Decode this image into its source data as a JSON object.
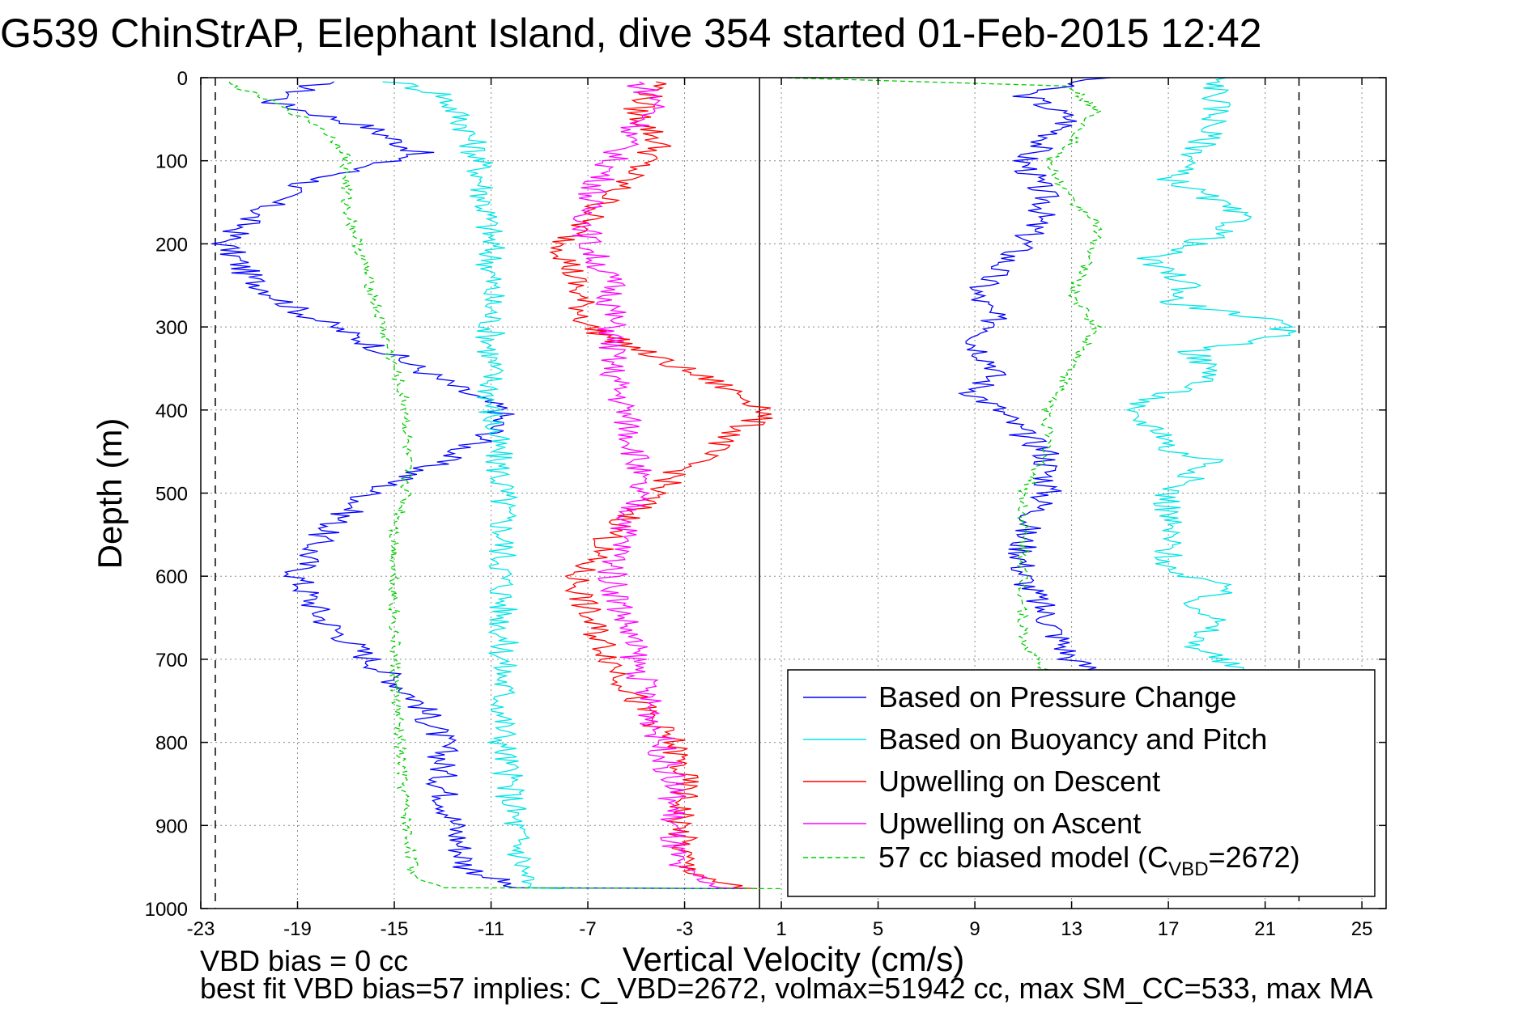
{
  "chart_data": {
    "type": "line",
    "title": "G539 ChinStrAP, Elephant Island, dive 354 started 01-Feb-2015 12:42",
    "xlabel": "Vertical Velocity (cm/s)",
    "ylabel": "Depth (m)",
    "xlim": [
      -23,
      26
    ],
    "ylim": [
      0,
      1000
    ],
    "y_reversed": true,
    "grid": true,
    "legend_position": "lower-right",
    "xticks": [
      "-23",
      "-19",
      "-15",
      "-11",
      "-7",
      "-3",
      "1",
      "5",
      "9",
      "13",
      "17",
      "21",
      "25"
    ],
    "yticks": [
      "0",
      "100",
      "200",
      "300",
      "400",
      "500",
      "600",
      "700",
      "800",
      "900",
      "1000"
    ],
    "vertical_lines": [
      {
        "x": -22.4,
        "style": "dashed",
        "color": "#000000"
      },
      {
        "x": 0.1,
        "style": "solid",
        "color": "#000000"
      },
      {
        "x": 22.4,
        "style": "dashed",
        "color": "#000000"
      }
    ],
    "series": [
      {
        "name": "Based on Pressure Change",
        "color": "#0000ff",
        "style": "solid",
        "points": [
          [
            -18,
            5
          ],
          [
            -20,
            30
          ],
          [
            -16,
            60
          ],
          [
            -14,
            90
          ],
          [
            -19,
            130
          ],
          [
            -21,
            170
          ],
          [
            -22,
            200
          ],
          [
            -21,
            240
          ],
          [
            -19,
            280
          ],
          [
            -16,
            320
          ],
          [
            -14,
            350
          ],
          [
            -12,
            380
          ],
          [
            -10.5,
            400
          ],
          [
            -11,
            430
          ],
          [
            -13,
            460
          ],
          [
            -16,
            500
          ],
          [
            -18,
            550
          ],
          [
            -19,
            600
          ],
          [
            -18,
            650
          ],
          [
            -16,
            700
          ],
          [
            -14,
            750
          ],
          [
            -13,
            800
          ],
          [
            -13,
            850
          ],
          [
            -12.5,
            900
          ],
          [
            -12,
            950
          ],
          [
            -10,
            975
          ],
          [
            -0.5,
            976
          ],
          [
            14,
            0
          ],
          [
            11,
            20
          ],
          [
            13,
            50
          ],
          [
            11,
            100
          ],
          [
            12,
            150
          ],
          [
            11,
            200
          ],
          [
            9,
            260
          ],
          [
            10,
            300
          ],
          [
            9,
            320
          ],
          [
            10,
            350
          ],
          [
            9,
            380
          ],
          [
            10,
            400
          ],
          [
            11,
            430
          ],
          [
            12,
            450
          ],
          [
            12,
            500
          ],
          [
            11,
            550
          ],
          [
            11,
            600
          ],
          [
            12,
            650
          ],
          [
            13,
            700
          ],
          [
            14,
            715
          ]
        ]
      },
      {
        "name": "Based on Buoyancy and Pitch",
        "color": "#00e5e5",
        "style": "solid",
        "points": [
          [
            -15,
            5
          ],
          [
            -13,
            20
          ],
          [
            -12,
            60
          ],
          [
            -11.5,
            100
          ],
          [
            -11,
            200
          ],
          [
            -11,
            300
          ],
          [
            -11,
            400
          ],
          [
            -10.5,
            500
          ],
          [
            -10.5,
            600
          ],
          [
            -10.5,
            700
          ],
          [
            -10.5,
            800
          ],
          [
            -10,
            900
          ],
          [
            -9.5,
            975
          ],
          [
            -8,
            976
          ],
          [
            19,
            0
          ],
          [
            19,
            20
          ],
          [
            19,
            50
          ],
          [
            18,
            100
          ],
          [
            17,
            120
          ],
          [
            19,
            150
          ],
          [
            20,
            170
          ],
          [
            19,
            190
          ],
          [
            16,
            220
          ],
          [
            18,
            250
          ],
          [
            17,
            270
          ],
          [
            21,
            290
          ],
          [
            22,
            310
          ],
          [
            18,
            330
          ],
          [
            19,
            360
          ],
          [
            17,
            380
          ],
          [
            15,
            400
          ],
          [
            17,
            430
          ],
          [
            17,
            450
          ],
          [
            19,
            460
          ],
          [
            17,
            500
          ],
          [
            17,
            550
          ],
          [
            17,
            600
          ],
          [
            20,
            610
          ],
          [
            18,
            630
          ],
          [
            19,
            650
          ],
          [
            18,
            680
          ],
          [
            19,
            700
          ],
          [
            20,
            715
          ]
        ]
      },
      {
        "name": "Upwelling on Descent",
        "color": "#ff0000",
        "style": "solid",
        "points": [
          [
            -4,
            5
          ],
          [
            -5,
            40
          ],
          [
            -4,
            80
          ],
          [
            -5,
            110
          ],
          [
            -6,
            140
          ],
          [
            -7,
            170
          ],
          [
            -8,
            200
          ],
          [
            -7.5,
            250
          ],
          [
            -7,
            300
          ],
          [
            -4,
            340
          ],
          [
            -1.5,
            370
          ],
          [
            0.5,
            400
          ],
          [
            -0.5,
            420
          ],
          [
            -2,
            450
          ],
          [
            -3.5,
            480
          ],
          [
            -5,
            520
          ],
          [
            -6,
            550
          ],
          [
            -7.5,
            600
          ],
          [
            -7,
            650
          ],
          [
            -6,
            700
          ],
          [
            -5,
            750
          ],
          [
            -3.5,
            800
          ],
          [
            -3,
            850
          ],
          [
            -3.2,
            900
          ],
          [
            -3,
            950
          ],
          [
            -1,
            975
          ],
          [
            0,
            976
          ]
        ]
      },
      {
        "name": "Upwelling on Ascent",
        "color": "#ff00ff",
        "style": "solid",
        "points": [
          [
            -5,
            5
          ],
          [
            -4,
            30
          ],
          [
            -5,
            60
          ],
          [
            -6,
            100
          ],
          [
            -7,
            150
          ],
          [
            -7,
            200
          ],
          [
            -6,
            250
          ],
          [
            -6,
            300
          ],
          [
            -6,
            350
          ],
          [
            -5.5,
            400
          ],
          [
            -5,
            450
          ],
          [
            -5,
            500
          ],
          [
            -5.5,
            550
          ],
          [
            -6,
            600
          ],
          [
            -5.5,
            650
          ],
          [
            -5,
            700
          ],
          [
            -4.5,
            750
          ],
          [
            -4,
            800
          ],
          [
            -3.5,
            850
          ],
          [
            -3.5,
            900
          ],
          [
            -3.5,
            950
          ],
          [
            -1.5,
            975
          ],
          [
            -0.5,
            976
          ]
        ]
      },
      {
        "name": "57 cc biased model (C",
        "name_subscript": "VBD",
        "name_suffix": "=2672)",
        "color": "#00cc00",
        "style": "dashed",
        "points": [
          [
            -22,
            5
          ],
          [
            -20,
            30
          ],
          [
            -18,
            60
          ],
          [
            -17,
            90
          ],
          [
            -17,
            150
          ],
          [
            -16.5,
            200
          ],
          [
            -16,
            250
          ],
          [
            -15.5,
            300
          ],
          [
            -15,
            350
          ],
          [
            -14.5,
            400
          ],
          [
            -14.5,
            450
          ],
          [
            -14.5,
            500
          ],
          [
            -15,
            550
          ],
          [
            -15,
            600
          ],
          [
            -15,
            650
          ],
          [
            -15,
            700
          ],
          [
            -14.8,
            800
          ],
          [
            -14.5,
            900
          ],
          [
            -14.2,
            960
          ],
          [
            -13,
            975
          ],
          [
            1,
            976
          ],
          [
            1,
            0
          ],
          [
            13,
            10
          ],
          [
            14,
            40
          ],
          [
            13,
            80
          ],
          [
            12,
            100
          ],
          [
            13,
            150
          ],
          [
            14,
            170
          ],
          [
            14,
            200
          ],
          [
            13,
            260
          ],
          [
            14,
            300
          ],
          [
            13,
            350
          ],
          [
            12,
            400
          ],
          [
            12,
            450
          ],
          [
            11,
            500
          ],
          [
            11,
            550
          ],
          [
            11,
            600
          ],
          [
            11,
            650
          ],
          [
            11,
            680
          ],
          [
            12,
            715
          ]
        ]
      }
    ]
  },
  "footer": {
    "line1": "VBD bias = 0 cc",
    "line2": "best fit VBD bias=57 implies: C_VBD=2672, volmax=51942 cc, max SM_CC=533, max MA"
  }
}
